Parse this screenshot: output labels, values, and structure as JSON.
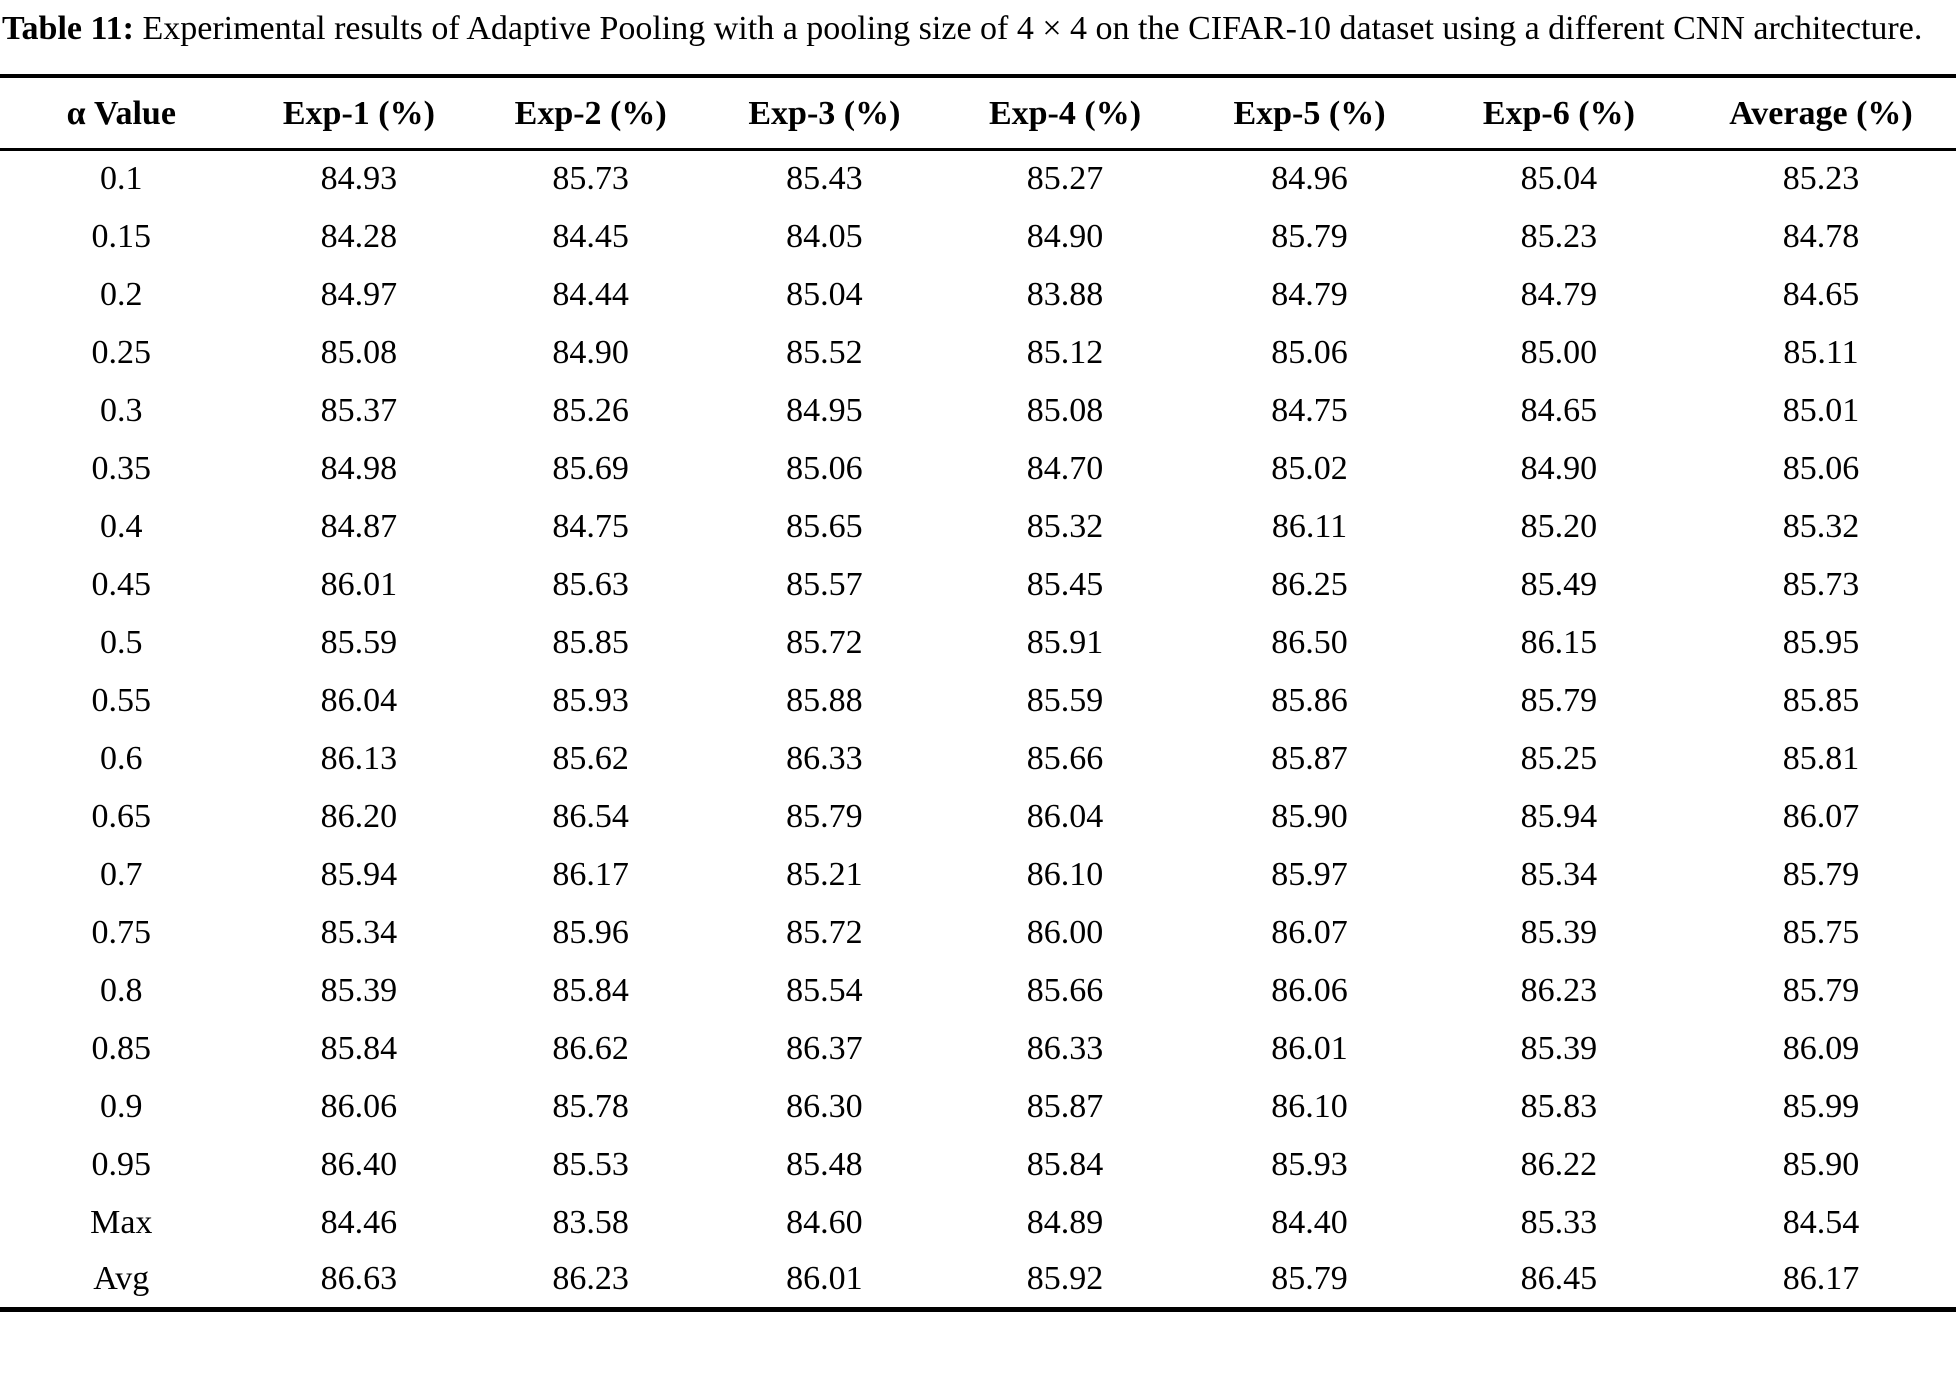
{
  "caption": {
    "label": "Table 11:",
    "text": "Experimental results of Adaptive Pooling with a pooling size of 4 × 4 on the CIFAR-10 dataset using a different CNN architecture."
  },
  "colors": {
    "text": "#000000",
    "background": "#ffffff",
    "rule": "#000000"
  },
  "table": {
    "columns": [
      "α Value",
      "Exp-1 (%)",
      "Exp-2 (%)",
      "Exp-3 (%)",
      "Exp-4 (%)",
      "Exp-5 (%)",
      "Exp-6 (%)",
      "Average (%)"
    ],
    "rows": [
      {
        "alpha": "0.1",
        "values": [
          "84.93",
          "85.73",
          "85.43",
          "85.27",
          "84.96",
          "85.04",
          "85.23"
        ]
      },
      {
        "alpha": "0.15",
        "values": [
          "84.28",
          "84.45",
          "84.05",
          "84.90",
          "85.79",
          "85.23",
          "84.78"
        ]
      },
      {
        "alpha": "0.2",
        "values": [
          "84.97",
          "84.44",
          "85.04",
          "83.88",
          "84.79",
          "84.79",
          "84.65"
        ]
      },
      {
        "alpha": "0.25",
        "values": [
          "85.08",
          "84.90",
          "85.52",
          "85.12",
          "85.06",
          "85.00",
          "85.11"
        ]
      },
      {
        "alpha": "0.3",
        "values": [
          "85.37",
          "85.26",
          "84.95",
          "85.08",
          "84.75",
          "84.65",
          "85.01"
        ]
      },
      {
        "alpha": "0.35",
        "values": [
          "84.98",
          "85.69",
          "85.06",
          "84.70",
          "85.02",
          "84.90",
          "85.06"
        ]
      },
      {
        "alpha": "0.4",
        "values": [
          "84.87",
          "84.75",
          "85.65",
          "85.32",
          "86.11",
          "85.20",
          "85.32"
        ]
      },
      {
        "alpha": "0.45",
        "values": [
          "86.01",
          "85.63",
          "85.57",
          "85.45",
          "86.25",
          "85.49",
          "85.73"
        ]
      },
      {
        "alpha": "0.5",
        "values": [
          "85.59",
          "85.85",
          "85.72",
          "85.91",
          "86.50",
          "86.15",
          "85.95"
        ]
      },
      {
        "alpha": "0.55",
        "values": [
          "86.04",
          "85.93",
          "85.88",
          "85.59",
          "85.86",
          "85.79",
          "85.85"
        ]
      },
      {
        "alpha": "0.6",
        "values": [
          "86.13",
          "85.62",
          "86.33",
          "85.66",
          "85.87",
          "85.25",
          "85.81"
        ]
      },
      {
        "alpha": "0.65",
        "values": [
          "86.20",
          "86.54",
          "85.79",
          "86.04",
          "85.90",
          "85.94",
          "86.07"
        ]
      },
      {
        "alpha": "0.7",
        "values": [
          "85.94",
          "86.17",
          "85.21",
          "86.10",
          "85.97",
          "85.34",
          "85.79"
        ]
      },
      {
        "alpha": "0.75",
        "values": [
          "85.34",
          "85.96",
          "85.72",
          "86.00",
          "86.07",
          "85.39",
          "85.75"
        ]
      },
      {
        "alpha": "0.8",
        "values": [
          "85.39",
          "85.84",
          "85.54",
          "85.66",
          "86.06",
          "86.23",
          "85.79"
        ]
      },
      {
        "alpha": "0.85",
        "values": [
          "85.84",
          "86.62",
          "86.37",
          "86.33",
          "86.01",
          "85.39",
          "86.09"
        ]
      },
      {
        "alpha": "0.9",
        "values": [
          "86.06",
          "85.78",
          "86.30",
          "85.87",
          "86.10",
          "85.83",
          "85.99"
        ]
      },
      {
        "alpha": "0.95",
        "values": [
          "86.40",
          "85.53",
          "85.48",
          "85.84",
          "85.93",
          "86.22",
          "85.90"
        ]
      },
      {
        "alpha": "Max",
        "values": [
          "84.46",
          "83.58",
          "84.60",
          "84.89",
          "84.40",
          "85.33",
          "84.54"
        ]
      },
      {
        "alpha": "Avg",
        "values": [
          "86.63",
          "86.23",
          "86.01",
          "85.92",
          "85.79",
          "86.45",
          "86.17"
        ]
      }
    ]
  }
}
